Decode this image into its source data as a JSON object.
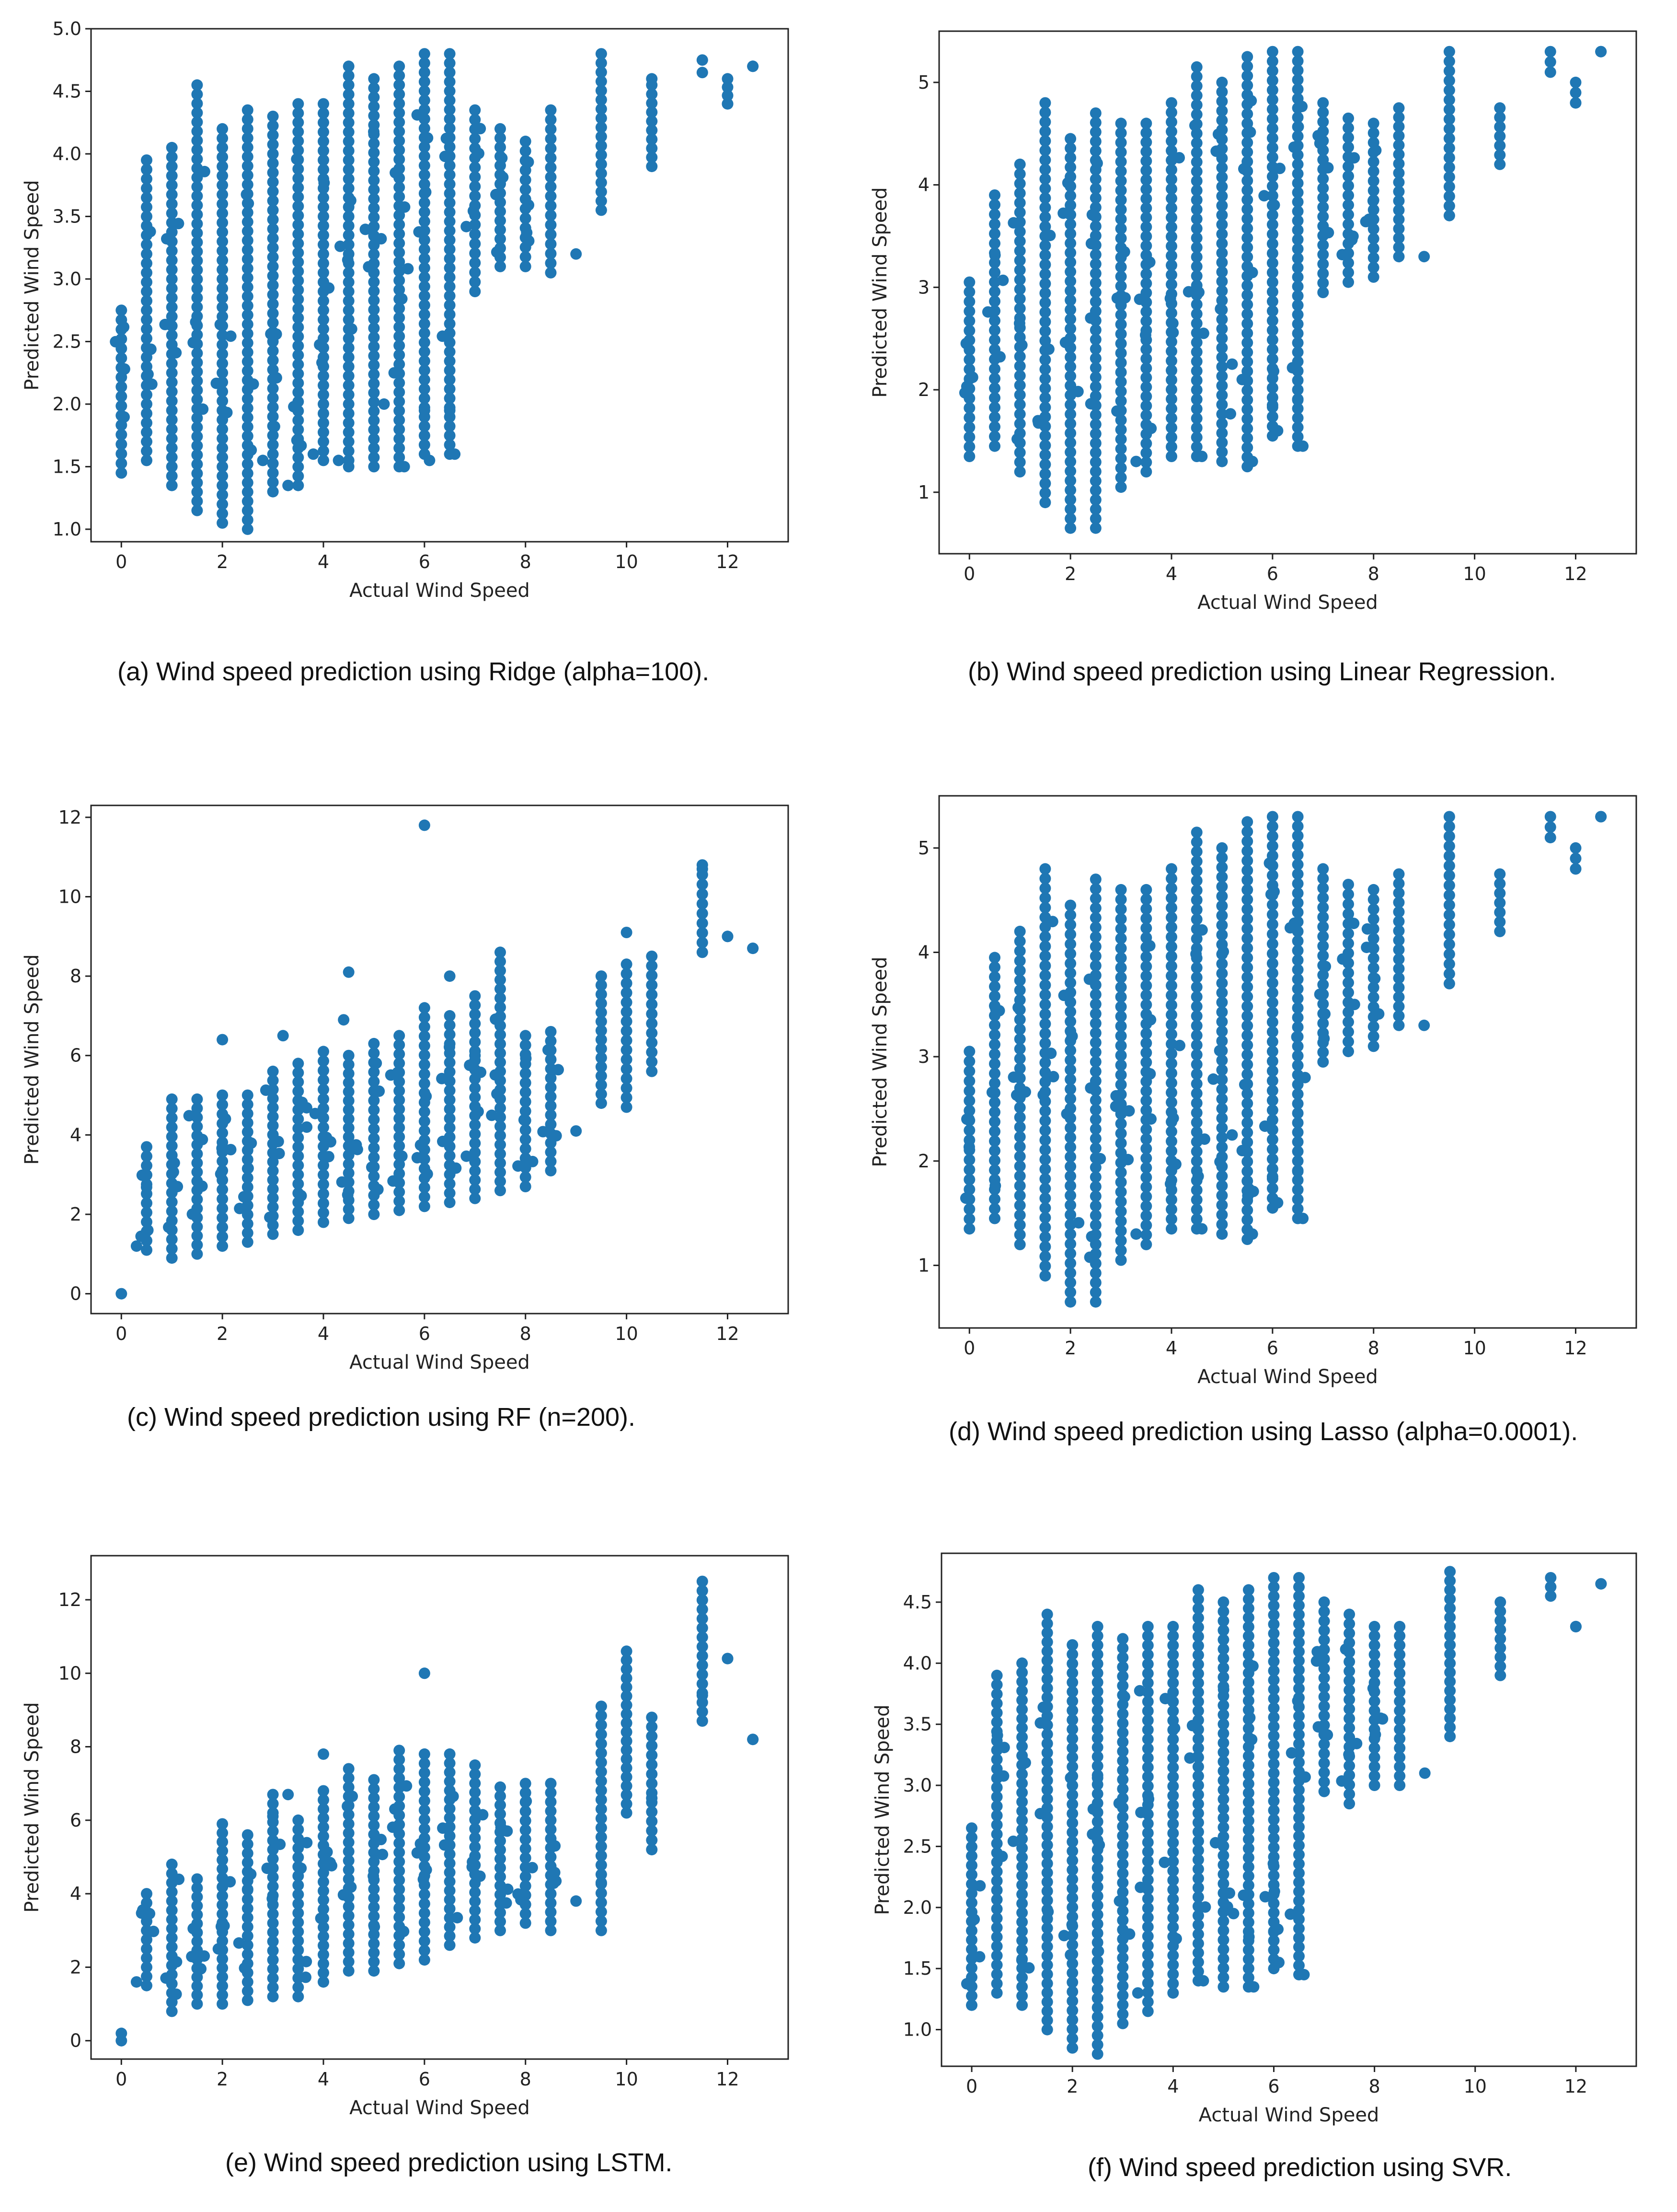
{
  "figure": {
    "marker_color": "#1f77b4",
    "captions": [
      "(a) Wind speed prediction using Ridge (alpha=100).",
      "(b) Wind speed prediction using Linear Regression.",
      "(c) Wind speed prediction using  RF (n=200).",
      "(d) Wind speed prediction using  Lasso (alpha=0.0001).",
      "(e) Wind speed prediction using LSTM.",
      "(f) Wind speed prediction using  SVR."
    ]
  },
  "chart_data": [
    {
      "id": "a",
      "type": "scatter",
      "title": "",
      "xlabel": "Actual Wind Speed",
      "ylabel": "Predicted Wind Speed",
      "xlim": [
        -0.6,
        13.2
      ],
      "ylim": [
        0.9,
        5.0
      ],
      "xticks": [
        0,
        2,
        4,
        6,
        8,
        10,
        12
      ],
      "xtick_labels": [
        "0",
        "2",
        "4",
        "6",
        "8",
        "10",
        "12"
      ],
      "yticks": [
        1.0,
        1.5,
        2.0,
        2.5,
        3.0,
        3.5,
        4.0,
        4.5,
        5.0
      ],
      "ytick_labels": [
        "1.0",
        "1.5",
        "2.0",
        "2.5",
        "3.0",
        "3.5",
        "4.0",
        "4.5",
        "5.0"
      ],
      "grid": false,
      "series": [
        {
          "x": [
            0,
            0.5,
            1,
            1.5,
            2,
            2.5,
            3,
            3.5,
            4,
            4.5,
            5,
            5.5,
            6,
            6.5,
            7,
            7.5,
            8,
            8.5,
            9.5,
            10.5,
            11.5,
            12,
            12.5
          ],
          "y_min": [
            1.45,
            1.55,
            1.35,
            1.15,
            1.05,
            1.0,
            1.3,
            1.35,
            1.55,
            1.55,
            1.5,
            1.5,
            1.6,
            1.6,
            2.9,
            3.1,
            3.1,
            3.05,
            3.55,
            3.9,
            4.65,
            4.4,
            4.7
          ],
          "y_max": [
            2.75,
            3.95,
            4.05,
            4.55,
            4.2,
            4.35,
            4.3,
            4.4,
            4.4,
            4.7,
            4.6,
            4.7,
            4.8,
            4.8,
            4.35,
            4.2,
            4.1,
            4.35,
            4.8,
            4.55,
            4.75,
            4.6,
            4.7
          ],
          "extra_points": [
            [
              2.8,
              1.55
            ],
            [
              3.3,
              1.35
            ],
            [
              3.8,
              1.6
            ],
            [
              4.5,
              1.5
            ],
            [
              5.4,
              2.25
            ],
            [
              5.6,
              1.5
            ],
            [
              6.0,
              1.95
            ],
            [
              6.1,
              1.55
            ],
            [
              6.5,
              1.95
            ],
            [
              6.6,
              1.6
            ],
            [
              5.2,
              2.0
            ],
            [
              4.3,
              1.55
            ],
            [
              9.0,
              3.2
            ],
            [
              12.0,
              4.4
            ],
            [
              10.5,
              4.6
            ]
          ]
        }
      ]
    },
    {
      "id": "b",
      "type": "scatter",
      "title": "",
      "xlabel": "Actual Wind Speed",
      "ylabel": "Predicted Wind Speed",
      "xlim": [
        -0.6,
        13.2
      ],
      "ylim": [
        0.4,
        5.5
      ],
      "xticks": [
        0,
        2,
        4,
        6,
        8,
        10,
        12
      ],
      "xtick_labels": [
        "0",
        "2",
        "4",
        "6",
        "8",
        "10",
        "12"
      ],
      "yticks": [
        1,
        2,
        3,
        4,
        5
      ],
      "ytick_labels": [
        "1",
        "2",
        "3",
        "4",
        "5"
      ],
      "grid": false,
      "series": [
        {
          "x": [
            0,
            0.5,
            1,
            1.5,
            2,
            2.5,
            3,
            3.5,
            4,
            4.5,
            5,
            5.5,
            6,
            6.5,
            7,
            7.5,
            8,
            8.5,
            9.5,
            10.5,
            11.5,
            12,
            12.5
          ],
          "y_min": [
            1.35,
            1.45,
            1.2,
            0.9,
            0.65,
            0.65,
            1.05,
            1.2,
            1.35,
            1.35,
            1.3,
            1.25,
            1.55,
            1.45,
            2.95,
            3.05,
            3.1,
            3.3,
            3.7,
            4.2,
            5.1,
            4.8,
            5.3
          ],
          "y_max": [
            3.05,
            3.9,
            4.2,
            4.8,
            4.45,
            4.7,
            4.6,
            4.6,
            4.8,
            5.15,
            5.0,
            5.25,
            5.3,
            5.3,
            4.8,
            4.65,
            4.6,
            4.75,
            5.3,
            4.75,
            5.3,
            5.0,
            5.3
          ],
          "extra_points": [
            [
              2.4,
              2.7
            ],
            [
              3.3,
              1.3
            ],
            [
              4.6,
              1.35
            ],
            [
              5.4,
              2.1
            ],
            [
              5.6,
              1.3
            ],
            [
              6.0,
              1.85
            ],
            [
              6.1,
              1.6
            ],
            [
              6.5,
              1.9
            ],
            [
              6.6,
              1.45
            ],
            [
              5.2,
              2.25
            ],
            [
              9.0,
              3.3
            ],
            [
              12.0,
              4.8
            ]
          ]
        }
      ]
    },
    {
      "id": "c",
      "type": "scatter",
      "title": "",
      "xlabel": "Actual Wind Speed",
      "ylabel": "Predicted Wind Speed",
      "xlim": [
        -0.6,
        13.2
      ],
      "ylim": [
        -0.5,
        12.3
      ],
      "xticks": [
        0,
        2,
        4,
        6,
        8,
        10,
        12
      ],
      "xtick_labels": [
        "0",
        "2",
        "4",
        "6",
        "8",
        "10",
        "12"
      ],
      "yticks": [
        0,
        2,
        4,
        6,
        8,
        10,
        12
      ],
      "ytick_labels": [
        "0",
        "2",
        "4",
        "6",
        "8",
        "10",
        "12"
      ],
      "grid": false,
      "series": [
        {
          "x": [
            0.5,
            1,
            1.5,
            2,
            2.5,
            3,
            3.5,
            4,
            4.5,
            5,
            5.5,
            6,
            6.5,
            7,
            7.5,
            8,
            8.5,
            9.5,
            10,
            10.5,
            11.5,
            12,
            12.5
          ],
          "y_min": [
            1.1,
            0.9,
            1.0,
            1.2,
            1.3,
            1.5,
            1.6,
            1.8,
            1.9,
            2.0,
            2.1,
            2.2,
            2.3,
            2.4,
            2.6,
            2.7,
            3.1,
            4.8,
            4.7,
            5.6,
            8.6,
            9.0,
            8.7
          ],
          "y_max": [
            3.7,
            4.9,
            4.9,
            5.0,
            5.0,
            5.6,
            5.8,
            6.1,
            6.0,
            6.3,
            6.5,
            7.2,
            7.0,
            7.5,
            8.6,
            6.5,
            6.6,
            8.0,
            8.3,
            8.5,
            10.8,
            9.0,
            8.7
          ],
          "extra_points": [
            [
              0,
              0
            ],
            [
              0.3,
              1.2
            ],
            [
              6.0,
              11.8
            ],
            [
              11.5,
              10.7
            ],
            [
              10.0,
              9.1
            ],
            [
              4.5,
              8.1
            ],
            [
              4.4,
              6.9
            ],
            [
              2.0,
              6.4
            ],
            [
              3.2,
              6.5
            ],
            [
              9.0,
              4.1
            ],
            [
              7.0,
              6.0
            ],
            [
              6.5,
              8.0
            ]
          ]
        }
      ]
    },
    {
      "id": "d",
      "type": "scatter",
      "title": "",
      "xlabel": "Actual Wind Speed",
      "ylabel": "Predicted Wind Speed",
      "xlim": [
        -0.6,
        13.2
      ],
      "ylim": [
        0.4,
        5.5
      ],
      "xticks": [
        0,
        2,
        4,
        6,
        8,
        10,
        12
      ],
      "xtick_labels": [
        "0",
        "2",
        "4",
        "6",
        "8",
        "10",
        "12"
      ],
      "yticks": [
        1,
        2,
        3,
        4,
        5
      ],
      "ytick_labels": [
        "1",
        "2",
        "3",
        "4",
        "5"
      ],
      "grid": false,
      "series": [
        {
          "x": [
            0,
            0.5,
            1,
            1.5,
            2,
            2.5,
            3,
            3.5,
            4,
            4.5,
            5,
            5.5,
            6,
            6.5,
            7,
            7.5,
            8,
            8.5,
            9.5,
            10.5,
            11.5,
            12,
            12.5
          ],
          "y_min": [
            1.35,
            1.45,
            1.2,
            0.9,
            0.65,
            0.65,
            1.05,
            1.2,
            1.35,
            1.35,
            1.3,
            1.25,
            1.55,
            1.45,
            2.95,
            3.05,
            3.1,
            3.3,
            3.7,
            4.2,
            5.1,
            4.8,
            5.3
          ],
          "y_max": [
            3.05,
            3.95,
            4.2,
            4.8,
            4.45,
            4.7,
            4.6,
            4.6,
            4.8,
            5.15,
            5.0,
            5.25,
            5.3,
            5.3,
            4.8,
            4.65,
            4.6,
            4.75,
            5.3,
            4.75,
            5.3,
            5.0,
            5.3
          ],
          "extra_points": [
            [
              2.4,
              2.7
            ],
            [
              3.3,
              1.3
            ],
            [
              4.6,
              1.35
            ],
            [
              5.4,
              2.1
            ],
            [
              5.6,
              1.3
            ],
            [
              6.0,
              1.85
            ],
            [
              6.1,
              1.6
            ],
            [
              6.5,
              1.9
            ],
            [
              6.6,
              1.45
            ],
            [
              5.2,
              2.25
            ],
            [
              9.0,
              3.3
            ],
            [
              12.0,
              4.8
            ]
          ]
        }
      ]
    },
    {
      "id": "e",
      "type": "scatter",
      "title": "",
      "xlabel": "Actual Wind Speed",
      "ylabel": "Predicted Wind Speed",
      "xlim": [
        -0.6,
        13.2
      ],
      "ylim": [
        -0.5,
        13.2
      ],
      "xticks": [
        0,
        2,
        4,
        6,
        8,
        10,
        12
      ],
      "xtick_labels": [
        "0",
        "2",
        "4",
        "6",
        "8",
        "10",
        "12"
      ],
      "yticks": [
        0,
        2,
        4,
        6,
        8,
        10,
        12
      ],
      "ytick_labels": [
        "0",
        "2",
        "4",
        "6",
        "8",
        "10",
        "12"
      ],
      "grid": false,
      "series": [
        {
          "x": [
            0.5,
            1,
            1.5,
            2,
            2.5,
            3,
            3.5,
            4,
            4.5,
            5,
            5.5,
            6,
            6.5,
            7,
            7.5,
            8,
            8.5,
            9.5,
            10,
            10.5,
            11.5,
            12,
            12.5
          ],
          "y_min": [
            1.5,
            0.8,
            1.0,
            1.0,
            1.1,
            1.2,
            1.2,
            1.6,
            1.9,
            1.9,
            2.1,
            2.2,
            2.6,
            2.8,
            3.0,
            3.2,
            3.0,
            3.0,
            6.2,
            5.2,
            8.7,
            10.4,
            8.2
          ],
          "y_max": [
            4.0,
            4.8,
            4.4,
            5.9,
            5.6,
            6.7,
            6.0,
            6.8,
            7.4,
            7.1,
            7.9,
            7.8,
            7.8,
            7.5,
            6.9,
            7.0,
            7.0,
            9.1,
            10.6,
            8.8,
            12.5,
            10.4,
            8.2
          ],
          "extra_points": [
            [
              0,
              0
            ],
            [
              0,
              0.2
            ],
            [
              0.3,
              1.6
            ],
            [
              6.0,
              10.0
            ],
            [
              11.5,
              9.4
            ],
            [
              9.0,
              3.8
            ],
            [
              10.5,
              6.6
            ],
            [
              9.5,
              4.3
            ],
            [
              4.0,
              7.8
            ],
            [
              3.3,
              6.7
            ]
          ]
        }
      ]
    },
    {
      "id": "f",
      "type": "scatter",
      "title": "",
      "xlabel": "Actual Wind Speed",
      "ylabel": "Predicted Wind Speed",
      "xlim": [
        -0.6,
        13.2
      ],
      "ylim": [
        0.7,
        4.9
      ],
      "xticks": [
        0,
        2,
        4,
        6,
        8,
        10,
        12
      ],
      "xtick_labels": [
        "0",
        "2",
        "4",
        "6",
        "8",
        "10",
        "12"
      ],
      "yticks": [
        1.0,
        1.5,
        2.0,
        2.5,
        3.0,
        3.5,
        4.0,
        4.5
      ],
      "ytick_labels": [
        "1.0",
        "1.5",
        "2.0",
        "2.5",
        "3.0",
        "3.5",
        "4.0",
        "4.5"
      ],
      "grid": false,
      "series": [
        {
          "x": [
            0,
            0.5,
            1,
            1.5,
            2,
            2.5,
            3,
            3.5,
            4,
            4.5,
            5,
            5.5,
            6,
            6.5,
            7,
            7.5,
            8,
            8.5,
            9.5,
            10.5,
            11.5,
            12,
            12.5
          ],
          "y_min": [
            1.2,
            1.3,
            1.2,
            1.0,
            0.85,
            0.8,
            1.05,
            1.15,
            1.3,
            1.4,
            1.35,
            1.35,
            1.5,
            1.45,
            2.95,
            2.85,
            3.0,
            3.0,
            3.4,
            3.9,
            4.55,
            4.3,
            4.65
          ],
          "y_max": [
            2.65,
            3.9,
            4.0,
            4.4,
            4.15,
            4.3,
            4.2,
            4.3,
            4.3,
            4.6,
            4.5,
            4.6,
            4.7,
            4.7,
            4.5,
            4.4,
            4.3,
            4.3,
            4.75,
            4.5,
            4.7,
            4.3,
            4.65
          ],
          "extra_points": [
            [
              2.4,
              2.6
            ],
            [
              3.3,
              1.3
            ],
            [
              4.6,
              1.4
            ],
            [
              5.4,
              2.1
            ],
            [
              5.6,
              1.35
            ],
            [
              6.0,
              1.8
            ],
            [
              6.1,
              1.55
            ],
            [
              6.5,
              1.75
            ],
            [
              6.6,
              1.45
            ],
            [
              5.2,
              1.95
            ],
            [
              9.0,
              3.1
            ],
            [
              12.0,
              4.3
            ]
          ]
        }
      ]
    }
  ]
}
